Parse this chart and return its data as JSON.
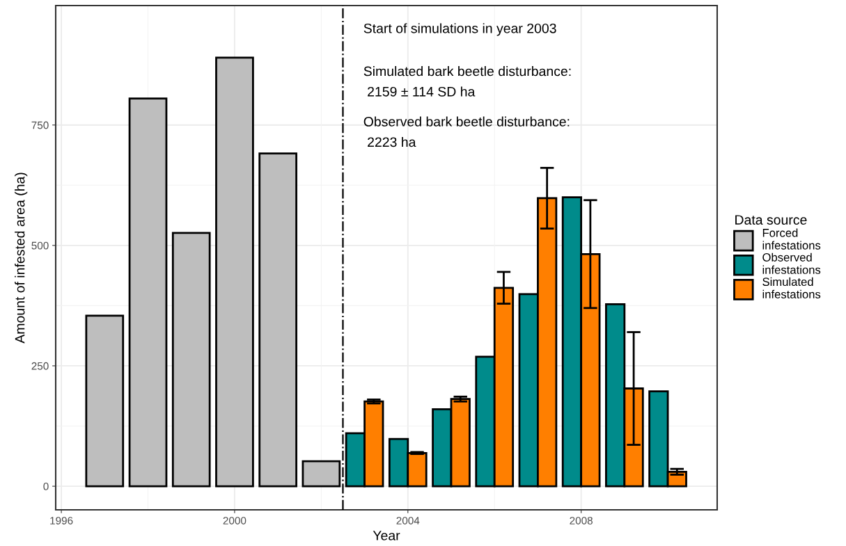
{
  "chart_data": {
    "type": "bar",
    "xlabel": "Year",
    "ylabel": "Amount of infested area (ha)",
    "legend_title": "Data source",
    "xlim": [
      1995.87,
      2011.14
    ],
    "ylim": [
      -49,
      998
    ],
    "xticks": [
      1996,
      2000,
      2004,
      2008
    ],
    "yticks": [
      0,
      250,
      500,
      750
    ],
    "grid": true,
    "legend": "right",
    "series": [
      {
        "name": "Forced\ninfestations",
        "color": "#bebebe",
        "x": [
          1997,
          1998,
          1999,
          2000,
          2001,
          2002
        ],
        "values": [
          354,
          805,
          526,
          890,
          691,
          52
        ]
      },
      {
        "name": "Observed\ninfestations",
        "color": "#008b8b",
        "x": [
          2003,
          2004,
          2005,
          2006,
          2007,
          2008,
          2009,
          2010
        ],
        "values": [
          110,
          98,
          160,
          269,
          399,
          600,
          378,
          197
        ]
      },
      {
        "name": "Simulated\ninfestations",
        "color": "#ff7f00",
        "x": [
          2003,
          2004,
          2005,
          2006,
          2007,
          2008,
          2009,
          2010
        ],
        "values": [
          176,
          69,
          181,
          412,
          598,
          482,
          203,
          30
        ],
        "errors": [
          4,
          2,
          5,
          33,
          63,
          112,
          117,
          6
        ]
      }
    ],
    "ref_lines": [
      {
        "axis": "x",
        "value": 2002.5,
        "line_style": "dashdot",
        "color": "#000000"
      }
    ],
    "annotations": [
      "Start of simulations in year 2003",
      "Simulated bark beetle disturbance:\n 2159 ± 114 SD ha",
      "Observed bark beetle disturbance:\n 2223 ha"
    ]
  }
}
